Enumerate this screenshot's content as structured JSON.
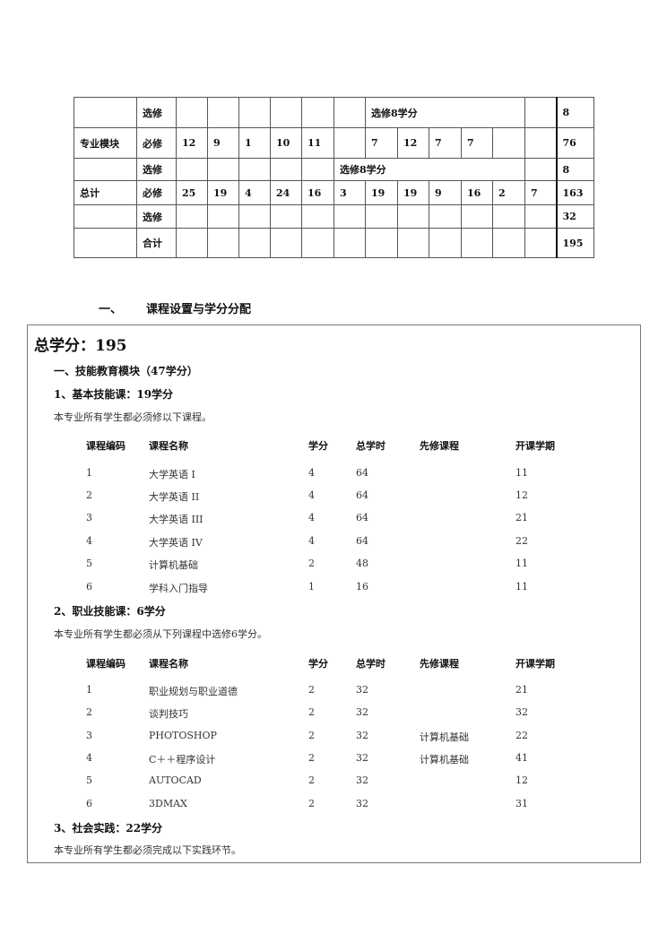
{
  "credit_table": {
    "rows": [
      {
        "module": "",
        "type": "选修",
        "cells": [
          "",
          "",
          "",
          "",
          "",
          ""
        ],
        "span_label": "选修8学分",
        "after": [
          ""
        ],
        "total": "8",
        "span_start": 6,
        "span_len": 5
      },
      {
        "module": "专业模块",
        "type": "必修",
        "cells": [
          "12",
          "9",
          "1",
          "10",
          "11",
          "",
          "7",
          "12",
          "7",
          "7",
          "",
          ""
        ],
        "total": "76"
      },
      {
        "module": "",
        "type": "选修",
        "cells": [
          "",
          "",
          "",
          "",
          ""
        ],
        "span_label": "选修8学分",
        "after": [
          ""
        ],
        "total": "8",
        "span_start": 5,
        "span_len": 6
      },
      {
        "module": "总计",
        "type": "必修",
        "cells": [
          "25",
          "19",
          "4",
          "24",
          "16",
          "3",
          "19",
          "19",
          "9",
          "16",
          "2",
          "7"
        ],
        "total": "163"
      },
      {
        "module": "",
        "type": "选修",
        "cells": [
          "",
          "",
          "",
          "",
          "",
          "",
          "",
          "",
          "",
          "",
          "",
          ""
        ],
        "total": "32"
      },
      {
        "module": "",
        "type": "合计",
        "cells": [
          "",
          "",
          "",
          "",
          "",
          "",
          "",
          "",
          "",
          "",
          "",
          ""
        ],
        "total": "195"
      }
    ]
  },
  "section_heading": {
    "number": "一、",
    "title": "课程设置与学分分配"
  },
  "box": {
    "total_credits": "总学分：195",
    "module_title": "一、技能教育模块（47学分）",
    "basic": {
      "title": "1、基本技能课：19学分",
      "note": "本专业所有学生都必须修以下课程。",
      "headers": [
        "课程编码",
        "课程名称",
        "学分",
        "总学时",
        "先修课程",
        "开课学期"
      ],
      "rows": [
        [
          "1",
          "大学英语 I",
          "4",
          "64",
          "",
          "11"
        ],
        [
          "2",
          "大学英语 II",
          "4",
          "64",
          "",
          "12"
        ],
        [
          "3",
          "大学英语 III",
          "4",
          "64",
          "",
          "21"
        ],
        [
          "4",
          "大学英语 IV",
          "4",
          "64",
          "",
          "22"
        ],
        [
          "5",
          "计算机基础",
          "2",
          "48",
          "",
          "11"
        ],
        [
          "6",
          "学科入门指导",
          "1",
          "16",
          "",
          "11"
        ]
      ]
    },
    "professional": {
      "title": "2、职业技能课：6学分",
      "note": "本专业所有学生都必须从下列课程中选修6学分。",
      "headers": [
        "课程编码",
        "课程名称",
        "学分",
        "总学时",
        "先修课程",
        "开课学期"
      ],
      "rows": [
        [
          "1",
          "职业规划与职业道德",
          "2",
          "32",
          "",
          "21"
        ],
        [
          "2",
          "谈判技巧",
          "2",
          "32",
          "",
          "32"
        ],
        [
          "3",
          "PHOTOSHOP",
          "2",
          "32",
          "计算机基础",
          "22"
        ],
        [
          "4",
          "C＋＋程序设计",
          "2",
          "32",
          "计算机基础",
          "41"
        ],
        [
          "5",
          "AUTOCAD",
          "2",
          "32",
          "",
          "12"
        ],
        [
          "6",
          "3DMAX",
          "2",
          "32",
          "",
          "31"
        ]
      ]
    },
    "practice": {
      "title": "3、社会实践：22学分",
      "note": "本专业所有学生都必须完成以下实践环节。"
    }
  }
}
